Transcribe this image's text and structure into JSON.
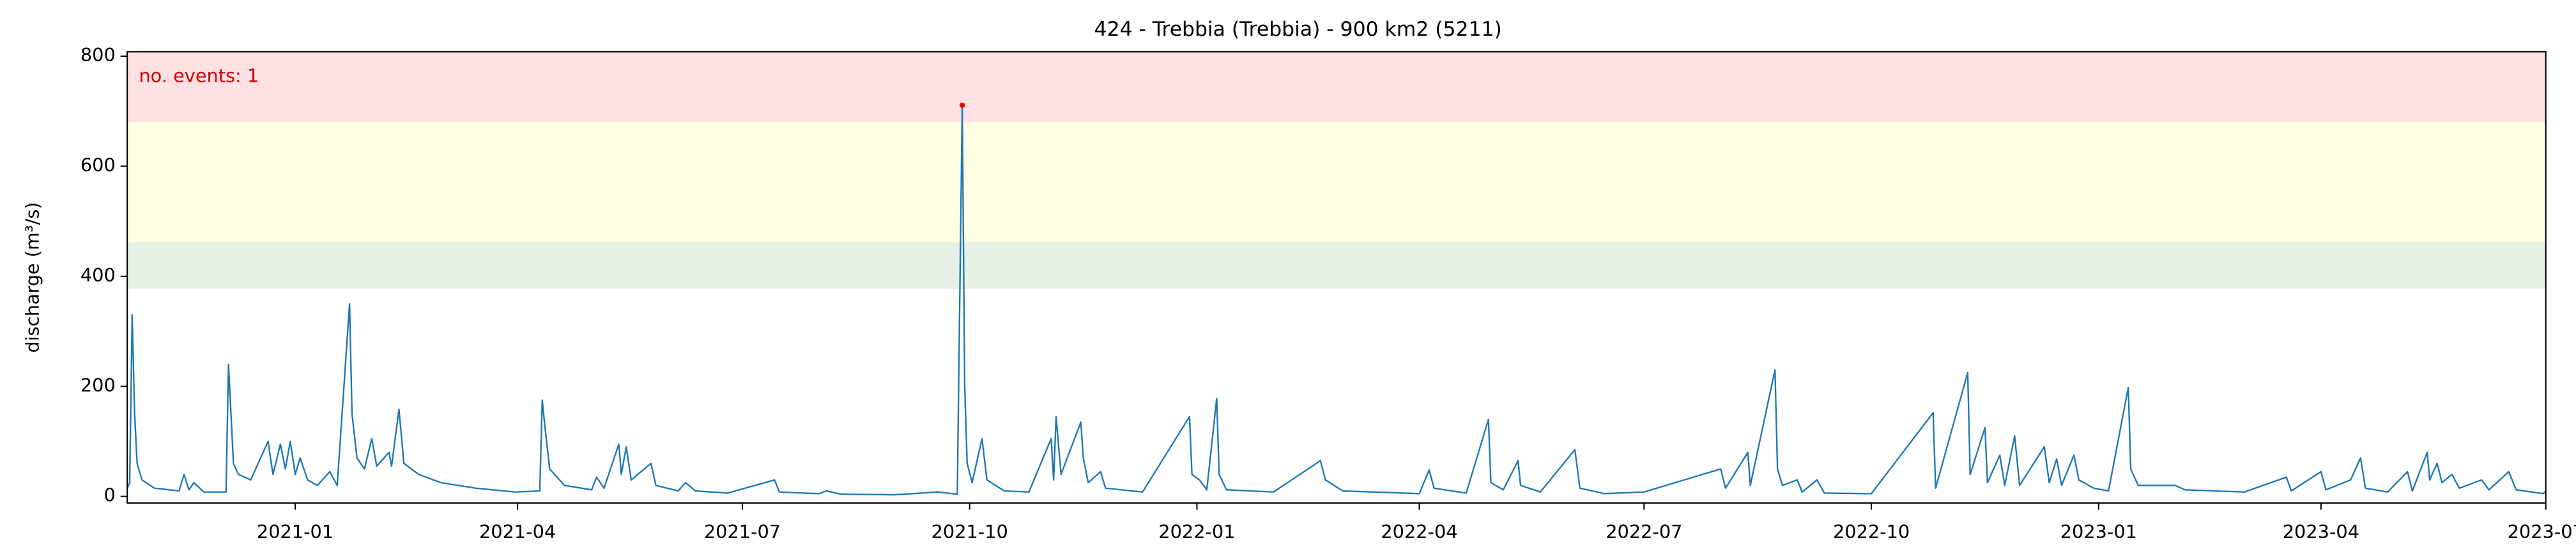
{
  "chart_data": {
    "type": "line",
    "title": "424 - Trebbia (Trebbia) - 900 km2 (5211)",
    "y_label": "discharge (m³/s)",
    "annotation": "no. events: 1",
    "annotation_color": "#cc0000",
    "xlim": [
      "2020-10-25",
      "2023-07-01"
    ],
    "xticks": [
      "2021-01",
      "2021-04",
      "2021-07",
      "2021-10",
      "2022-01",
      "2022-04",
      "2022-07",
      "2022-10",
      "2023-01",
      "2023-04",
      "2023-07"
    ],
    "ylim": [
      -12,
      808
    ],
    "yticks": [
      0,
      200,
      400,
      600,
      800
    ],
    "bands": [
      {
        "from": 377,
        "to": 462,
        "color": "#e6f0e4"
      },
      {
        "from": 462,
        "to": 680,
        "color": "#fefee3"
      },
      {
        "from": 680,
        "to": 808,
        "color": "#ffe0e3"
      }
    ],
    "x": [
      "2020-10-25",
      "2020-10-26",
      "2020-10-27",
      "2020-10-28",
      "2020-10-29",
      "2020-10-31",
      "2020-11-05",
      "2020-11-15",
      "2020-11-17",
      "2020-11-19",
      "2020-11-21",
      "2020-11-25",
      "2020-12-04",
      "2020-12-05",
      "2020-12-06",
      "2020-12-07",
      "2020-12-09",
      "2020-12-14",
      "2020-12-21",
      "2020-12-23",
      "2020-12-26",
      "2020-12-28",
      "2020-12-30",
      "2021-01-01",
      "2021-01-03",
      "2021-01-06",
      "2021-01-10",
      "2021-01-15",
      "2021-01-18",
      "2021-01-23",
      "2021-01-24",
      "2021-01-26",
      "2021-01-29",
      "2021-02-01",
      "2021-02-03",
      "2021-02-08",
      "2021-02-09",
      "2021-02-12",
      "2021-02-14",
      "2021-02-20",
      "2021-03-01",
      "2021-03-15",
      "2021-03-31",
      "2021-04-10",
      "2021-04-11",
      "2021-04-12",
      "2021-04-14",
      "2021-04-20",
      "2021-05-01",
      "2021-05-03",
      "2021-05-06",
      "2021-05-12",
      "2021-05-13",
      "2021-05-15",
      "2021-05-17",
      "2021-05-25",
      "2021-05-27",
      "2021-06-05",
      "2021-06-08",
      "2021-06-12",
      "2021-06-25",
      "2021-07-14",
      "2021-07-16",
      "2021-08-01",
      "2021-08-04",
      "2021-08-10",
      "2021-09-01",
      "2021-09-18",
      "2021-09-26",
      "2021-09-28",
      "2021-09-29",
      "2021-09-30",
      "2021-10-02",
      "2021-10-06",
      "2021-10-08",
      "2021-10-15",
      "2021-10-25",
      "2021-11-03",
      "2021-11-04",
      "2021-11-05",
      "2021-11-07",
      "2021-11-15",
      "2021-11-16",
      "2021-11-18",
      "2021-11-23",
      "2021-11-25",
      "2021-12-10",
      "2021-12-29",
      "2021-12-30",
      "2022-01-02",
      "2022-01-05",
      "2022-01-09",
      "2022-01-10",
      "2022-01-13",
      "2022-02-01",
      "2022-02-20",
      "2022-02-22",
      "2022-03-01",
      "2022-04-01",
      "2022-04-05",
      "2022-04-07",
      "2022-04-20",
      "2022-04-29",
      "2022-04-30",
      "2022-05-05",
      "2022-05-11",
      "2022-05-12",
      "2022-05-20",
      "2022-06-03",
      "2022-06-05",
      "2022-06-15",
      "2022-07-01",
      "2022-08-01",
      "2022-08-03",
      "2022-08-12",
      "2022-08-13",
      "2022-08-23",
      "2022-08-24",
      "2022-08-26",
      "2022-09-01",
      "2022-09-03",
      "2022-09-09",
      "2022-09-12",
      "2022-10-01",
      "2022-10-26",
      "2022-10-27",
      "2022-11-09",
      "2022-11-10",
      "2022-11-16",
      "2022-11-17",
      "2022-11-22",
      "2022-11-24",
      "2022-11-28",
      "2022-11-30",
      "2022-12-10",
      "2022-12-12",
      "2022-12-15",
      "2022-12-17",
      "2022-12-22",
      "2022-12-24",
      "2022-12-30",
      "2023-01-05",
      "2023-01-13",
      "2023-01-14",
      "2023-01-17",
      "2023-02-01",
      "2023-02-05",
      "2023-03-01",
      "2023-03-18",
      "2023-03-20",
      "2023-04-01",
      "2023-04-03",
      "2023-04-13",
      "2023-04-17",
      "2023-04-19",
      "2023-04-28",
      "2023-05-06",
      "2023-05-08",
      "2023-05-14",
      "2023-05-15",
      "2023-05-18",
      "2023-05-20",
      "2023-05-24",
      "2023-05-27",
      "2023-06-05",
      "2023-06-08",
      "2023-06-16",
      "2023-06-19",
      "2023-06-30",
      "2023-07-01"
    ],
    "series": [
      {
        "name": "discharge",
        "color": "#1f77b4",
        "values": [
          15,
          25,
          330,
          150,
          60,
          30,
          15,
          10,
          40,
          12,
          25,
          8,
          8,
          240,
          150,
          60,
          40,
          30,
          100,
          40,
          95,
          50,
          100,
          40,
          70,
          30,
          20,
          45,
          20,
          350,
          150,
          70,
          50,
          105,
          55,
          80,
          55,
          158,
          60,
          40,
          25,
          15,
          8,
          10,
          175,
          130,
          50,
          20,
          12,
          35,
          15,
          95,
          40,
          90,
          30,
          60,
          20,
          10,
          25,
          10,
          6,
          30,
          8,
          5,
          10,
          4,
          3,
          8,
          4,
          711,
          200,
          60,
          25,
          105,
          30,
          10,
          8,
          105,
          30,
          145,
          40,
          135,
          70,
          25,
          45,
          15,
          8,
          145,
          40,
          30,
          12,
          178,
          40,
          12,
          8,
          65,
          30,
          10,
          5,
          48,
          15,
          6,
          140,
          25,
          12,
          65,
          20,
          8,
          85,
          15,
          5,
          8,
          50,
          15,
          80,
          20,
          230,
          50,
          20,
          30,
          8,
          30,
          6,
          5,
          152,
          15,
          225,
          40,
          125,
          25,
          75,
          20,
          110,
          20,
          90,
          25,
          68,
          20,
          75,
          30,
          15,
          10,
          198,
          50,
          20,
          20,
          12,
          8,
          35,
          10,
          45,
          12,
          30,
          70,
          15,
          8,
          45,
          10,
          80,
          30,
          60,
          25,
          40,
          15,
          30,
          12,
          45,
          12,
          5,
          10
        ]
      }
    ],
    "events": {
      "x": [
        "2021-09-28"
      ],
      "values": [
        711
      ],
      "color": "#e00000"
    }
  }
}
